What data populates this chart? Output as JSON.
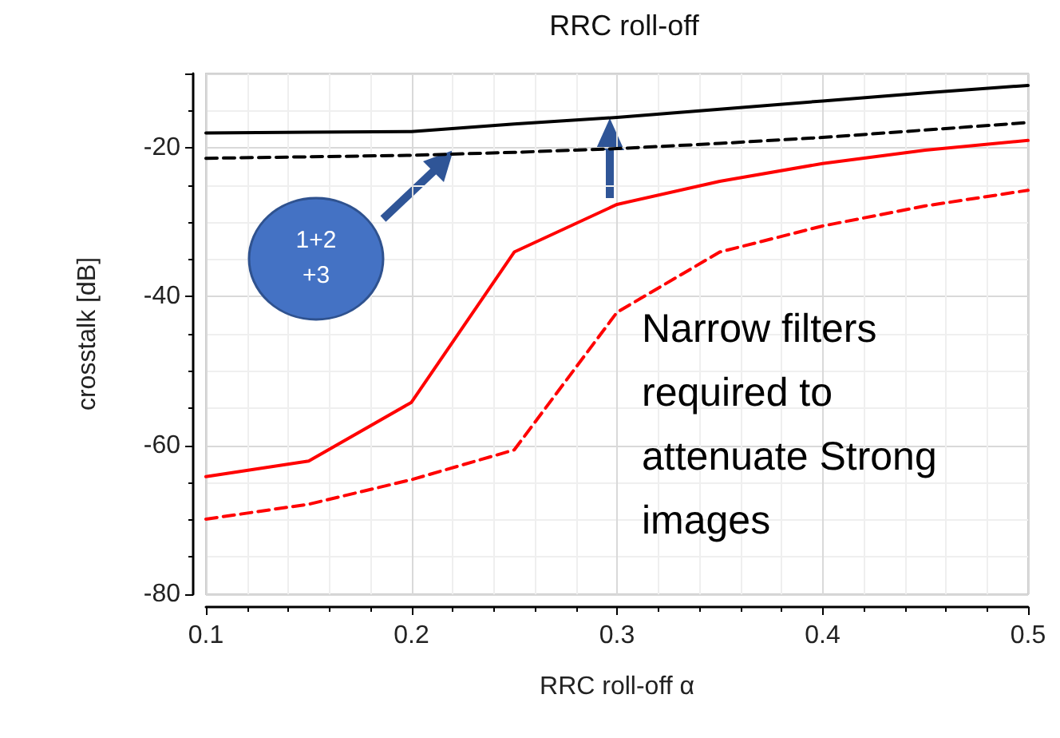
{
  "chart_data": {
    "type": "line",
    "title": "RRC roll-off",
    "xlabel": "RRC roll-off α",
    "ylabel": "crosstalk [dB]",
    "x": [
      0.1,
      0.15,
      0.2,
      0.25,
      0.3,
      0.35,
      0.4,
      0.45,
      0.5
    ],
    "series": [
      {
        "color": "#000000",
        "line_style": "solid",
        "values": [
          -18.0,
          -17.9,
          -17.8,
          -16.8,
          -15.9,
          -14.8,
          -13.7,
          -12.6,
          -11.6
        ]
      },
      {
        "color": "#000000",
        "line_style": "dashed",
        "values": [
          -21.4,
          -21.2,
          -21.0,
          -20.6,
          -20.1,
          -19.4,
          -18.6,
          -17.6,
          -16.6
        ]
      },
      {
        "color": "#ff0000",
        "line_style": "solid",
        "values": [
          -64.2,
          -62.1,
          -54.2,
          -34.0,
          -27.6,
          -24.5,
          -22.1,
          -20.3,
          -19.0
        ]
      },
      {
        "color": "#ff0000",
        "line_style": "dashed",
        "values": [
          -69.9,
          -67.9,
          -64.6,
          -60.6,
          -42.1,
          -34.0,
          -30.5,
          -27.8,
          -25.7
        ]
      }
    ],
    "xlim": [
      0.1,
      0.5
    ],
    "xticks": [
      0.1,
      0.2,
      0.3,
      0.4,
      0.5
    ],
    "ylim": [
      -80,
      -10
    ],
    "yticks": [
      -80,
      -60,
      -40,
      -20
    ],
    "grid": true,
    "marker": "none",
    "annotations": [
      "1+2 +3",
      "Narrow filters required to attenuate Strong images"
    ]
  }
}
